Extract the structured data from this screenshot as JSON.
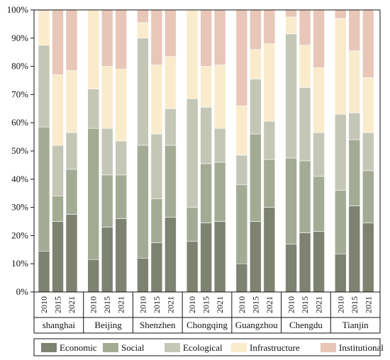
{
  "chart_data": {
    "type": "bar",
    "stacked": true,
    "percent": true,
    "title": "",
    "xlabel": "",
    "ylabel": "",
    "ylim": [
      0,
      100
    ],
    "yticks": [
      "0%",
      "10%",
      "20%",
      "30%",
      "40%",
      "50%",
      "60%",
      "70%",
      "80%",
      "90%",
      "100%"
    ],
    "legend_position": "bottom",
    "groups": [
      {
        "city": "shanghai",
        "years": [
          "2010",
          "2015",
          "2021"
        ]
      },
      {
        "city": "Beijing",
        "years": [
          "2010",
          "2015",
          "2021"
        ]
      },
      {
        "city": "Shenzhen",
        "years": [
          "2010",
          "2015",
          "2021"
        ]
      },
      {
        "city": "Chongqing",
        "years": [
          "2010",
          "2015",
          "2021"
        ]
      },
      {
        "city": "Guangzhou",
        "years": [
          "2010",
          "2015",
          "2021"
        ]
      },
      {
        "city": "Chengdu",
        "years": [
          "2010",
          "2015",
          "2021"
        ]
      },
      {
        "city": "Tianjin",
        "years": [
          "2010",
          "2015",
          "2021"
        ]
      }
    ],
    "series": [
      {
        "name": "Economic",
        "color": "#7e8270",
        "values": [
          14.5,
          25,
          27.5,
          11.5,
          23,
          26,
          12,
          17.5,
          26.5,
          18,
          24.5,
          25,
          10,
          25,
          30,
          17,
          21,
          21.5,
          13.5,
          30.5,
          24.5
        ]
      },
      {
        "name": "Social",
        "color": "#a4ab94",
        "values": [
          44,
          9,
          16,
          46.5,
          18.5,
          15.5,
          40,
          15.5,
          25.5,
          12,
          21,
          21,
          28,
          31,
          17,
          30.5,
          25.5,
          19.5,
          22.5,
          23.5,
          18.5
        ]
      },
      {
        "name": "Ecological",
        "color": "#c5c7b6",
        "values": [
          29,
          18,
          13,
          14,
          16.5,
          12,
          38,
          23,
          13,
          38.5,
          20,
          12,
          10.5,
          19.5,
          13.5,
          44,
          26,
          15.5,
          27,
          9.5,
          13.5
        ]
      },
      {
        "name": "Infrastructure",
        "color": "#faebcc",
        "values": [
          12,
          25,
          22,
          28,
          22,
          25.5,
          5.5,
          24.5,
          18.5,
          31.5,
          14.5,
          22.5,
          17.5,
          10.5,
          27.5,
          6,
          15,
          23,
          34,
          22,
          19.5
        ]
      },
      {
        "name": "Institutional",
        "color": "#e8c6b8",
        "values": [
          0.5,
          23,
          21.5,
          0,
          20,
          21,
          4.5,
          19.5,
          16.5,
          0,
          20,
          19.5,
          34,
          14,
          12,
          2.5,
          12.5,
          20.5,
          3,
          14.5,
          24
        ]
      }
    ]
  }
}
